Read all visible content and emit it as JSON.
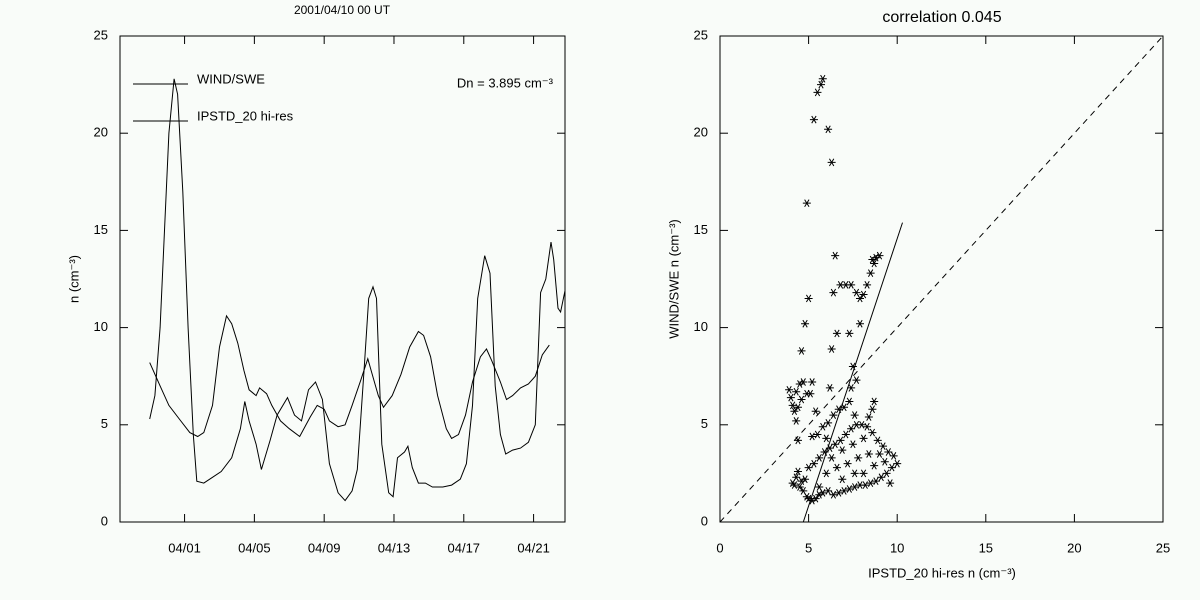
{
  "chart_data": [
    {
      "type": "line",
      "title": "2001/04/10 00 UT",
      "annotation": "Dn = 3.895 cm⁻³",
      "ylabel": "n (cm⁻³)",
      "legend": "upper left",
      "xlim": [
        -2.7,
        22.8
      ],
      "ylim": [
        0,
        25
      ],
      "xticks": [
        {
          "value": 1,
          "label": "04/01"
        },
        {
          "value": 5,
          "label": "04/05"
        },
        {
          "value": 9,
          "label": "04/09"
        },
        {
          "value": 13,
          "label": "04/13"
        },
        {
          "value": 17,
          "label": "04/17"
        },
        {
          "value": 21,
          "label": "04/21"
        }
      ],
      "yticks": [
        0,
        5,
        10,
        15,
        20,
        25
      ],
      "series": [
        {
          "name": "WIND/SWE",
          "color": "#000000",
          "x": [
            -1.0,
            -0.7,
            -0.4,
            -0.15,
            0.1,
            0.4,
            0.6,
            0.9,
            1.2,
            1.5,
            1.7,
            2.1,
            2.6,
            3.1,
            3.7,
            4.2,
            4.45,
            4.7,
            5.1,
            5.4,
            5.9,
            6.3,
            6.9,
            7.3,
            7.7,
            8.1,
            8.5,
            8.9,
            9.3,
            9.8,
            10.2,
            10.6,
            10.9,
            11.3,
            11.55,
            11.8,
            12.0,
            12.3,
            12.7,
            12.95,
            13.2,
            13.6,
            13.8,
            14.05,
            14.4,
            14.8,
            15.2,
            15.8,
            16.3,
            16.8,
            17.15,
            17.5,
            17.8,
            18.2,
            18.5,
            18.8,
            19.1,
            19.4,
            19.8,
            20.25,
            20.7,
            21.1,
            21.4,
            21.7,
            22.0,
            22.15,
            22.4,
            22.55,
            22.8
          ],
          "values": [
            5.3,
            6.5,
            10,
            15,
            20,
            22.8,
            22,
            17,
            10,
            4.5,
            2.1,
            2.0,
            2.3,
            2.6,
            3.3,
            4.8,
            6.2,
            5.2,
            4.0,
            2.7,
            4.2,
            5.5,
            6.4,
            5.5,
            5.2,
            6.8,
            7.2,
            6.3,
            3.0,
            1.5,
            1.1,
            1.6,
            2.7,
            8.0,
            11.5,
            12.1,
            11.5,
            4.0,
            1.5,
            1.3,
            3.3,
            3.6,
            3.9,
            2.8,
            2.0,
            2.0,
            1.8,
            1.8,
            1.9,
            2.2,
            3.0,
            6.0,
            11.5,
            13.7,
            12.8,
            7.0,
            4.5,
            3.5,
            3.7,
            3.8,
            4.1,
            5.0,
            11.8,
            12.5,
            14.4,
            13.5,
            11.0,
            10.8,
            11.9
          ]
        },
        {
          "name": "IPSTD_20 hi-res",
          "color": "#000000",
          "x": [
            -1.0,
            -0.4,
            0.1,
            0.7,
            1.3,
            1.75,
            2.1,
            2.6,
            3.0,
            3.4,
            3.7,
            4.05,
            4.4,
            4.7,
            5.1,
            5.3,
            5.7,
            6.0,
            6.5,
            7.0,
            7.6,
            8.2,
            8.6,
            9.0,
            9.3,
            9.8,
            10.2,
            10.6,
            11.1,
            11.5,
            11.75,
            12.1,
            12.4,
            12.9,
            13.4,
            13.9,
            14.4,
            14.7,
            15.1,
            15.5,
            16.0,
            16.3,
            16.7,
            17.1,
            17.5,
            17.95,
            18.3,
            18.6,
            19.1,
            19.45,
            19.8,
            20.25,
            20.7,
            21.1,
            21.5,
            21.9
          ],
          "values": [
            8.2,
            7.0,
            6.0,
            5.3,
            4.6,
            4.4,
            4.6,
            6.0,
            9.0,
            10.6,
            10.2,
            9.2,
            7.8,
            6.8,
            6.5,
            6.9,
            6.6,
            6.0,
            5.2,
            4.8,
            4.4,
            5.4,
            6.0,
            5.8,
            5.2,
            4.9,
            5.0,
            6.0,
            7.3,
            8.4,
            7.6,
            6.5,
            5.9,
            6.5,
            7.6,
            9.0,
            9.8,
            9.6,
            8.5,
            6.5,
            4.8,
            4.3,
            4.5,
            5.5,
            7.2,
            8.5,
            8.9,
            8.3,
            7.2,
            6.3,
            6.5,
            6.9,
            7.1,
            7.5,
            8.6,
            9.1
          ]
        }
      ]
    },
    {
      "type": "scatter",
      "title": "correlation 0.045",
      "xlabel": "IPSTD_20 hi-res n (cm⁻³)",
      "ylabel": "WIND/SWE n (cm⁻³)",
      "color": "#000000",
      "marker": "asterisk",
      "xlim": [
        0,
        25
      ],
      "ylim": [
        0,
        25
      ],
      "xticks": [
        0,
        5,
        10,
        15,
        20,
        25
      ],
      "yticks": [
        0,
        5,
        10,
        15,
        20,
        25
      ],
      "x": [
        5.8,
        5.7,
        5.5,
        5.3,
        6.1,
        6.3,
        4.9,
        6.5,
        5.0,
        4.8,
        4.6,
        6.6,
        6.4,
        6.8,
        7.1,
        7.4,
        7.7,
        7.9,
        8.1,
        8.3,
        8.5,
        8.7,
        8.8,
        9.0,
        8.6,
        7.9,
        7.3,
        6.3,
        7.5,
        7.7,
        7.4,
        6.2,
        5.4,
        5.1,
        4.3,
        4.4,
        3.9,
        4.0,
        4.1,
        4.3,
        4.5,
        4.7,
        4.6,
        4.9,
        4.4,
        4.2,
        5.2,
        4.1,
        4.2,
        4.3,
        4.4,
        4.5,
        4.6,
        4.7,
        4.8,
        4.9,
        5.0,
        5.2,
        5.4,
        5.6,
        5.8,
        6.1,
        6.4,
        6.7,
        7.0,
        7.3,
        7.6,
        7.9,
        8.2,
        8.5,
        8.8,
        9.1,
        9.4,
        9.7,
        10.0,
        9.8,
        9.5,
        9.2,
        8.9,
        8.6,
        8.3,
        8.0,
        7.7,
        7.4,
        7.1,
        6.8,
        6.5,
        6.2,
        5.9,
        5.6,
        5.3,
        5.0,
        5.5,
        5.8,
        6.1,
        6.4,
        6.7,
        7.0,
        7.3,
        6.0,
        6.6,
        7.2,
        7.8,
        8.4,
        9.0,
        8.1,
        8.7,
        9.3,
        6.3,
        6.9,
        7.5,
        8.1,
        8.7,
        8.6,
        8.4,
        7.6,
        6.0,
        5.2,
        5.6,
        6.9,
        7.6,
        9.6
      ],
      "y": [
        22.8,
        22.5,
        22.1,
        20.7,
        20.2,
        18.5,
        16.4,
        13.7,
        11.5,
        10.2,
        8.8,
        9.7,
        11.8,
        12.2,
        12.2,
        12.2,
        11.8,
        11.5,
        11.7,
        12.2,
        12.8,
        13.3,
        13.6,
        13.7,
        13.5,
        10.2,
        9.7,
        8.9,
        8.0,
        7.3,
        6.9,
        6.9,
        5.7,
        6.6,
        5.2,
        4.2,
        6.8,
        6.4,
        6.0,
        6.7,
        7.1,
        7.2,
        6.3,
        6.6,
        5.9,
        5.7,
        7.2,
        2.0,
        1.9,
        2.3,
        2.6,
        1.8,
        2.1,
        1.6,
        2.2,
        1.3,
        1.2,
        1.1,
        1.2,
        1.4,
        1.5,
        1.6,
        1.4,
        1.5,
        1.6,
        1.7,
        1.8,
        1.9,
        1.9,
        2.0,
        2.1,
        2.3,
        2.5,
        2.8,
        3.0,
        3.4,
        3.6,
        3.9,
        4.2,
        4.6,
        4.9,
        5.0,
        5.0,
        4.8,
        4.5,
        4.2,
        4.0,
        3.8,
        3.6,
        3.3,
        3.0,
        2.8,
        4.5,
        4.9,
        5.1,
        5.5,
        5.8,
        5.9,
        6.2,
        2.5,
        2.8,
        3.0,
        3.3,
        3.5,
        3.5,
        2.5,
        2.9,
        3.1,
        3.3,
        3.7,
        4.0,
        4.3,
        6.2,
        5.8,
        5.4,
        5.5,
        4.3,
        4.4,
        1.8,
        2.2,
        2.5,
        2.0
      ],
      "lines": [
        {
          "style": "solid",
          "x": [
            4.7,
            10.3
          ],
          "y": [
            0,
            15.4
          ]
        },
        {
          "style": "dashed",
          "x": [
            0,
            25
          ],
          "y": [
            0,
            25
          ]
        }
      ]
    }
  ]
}
